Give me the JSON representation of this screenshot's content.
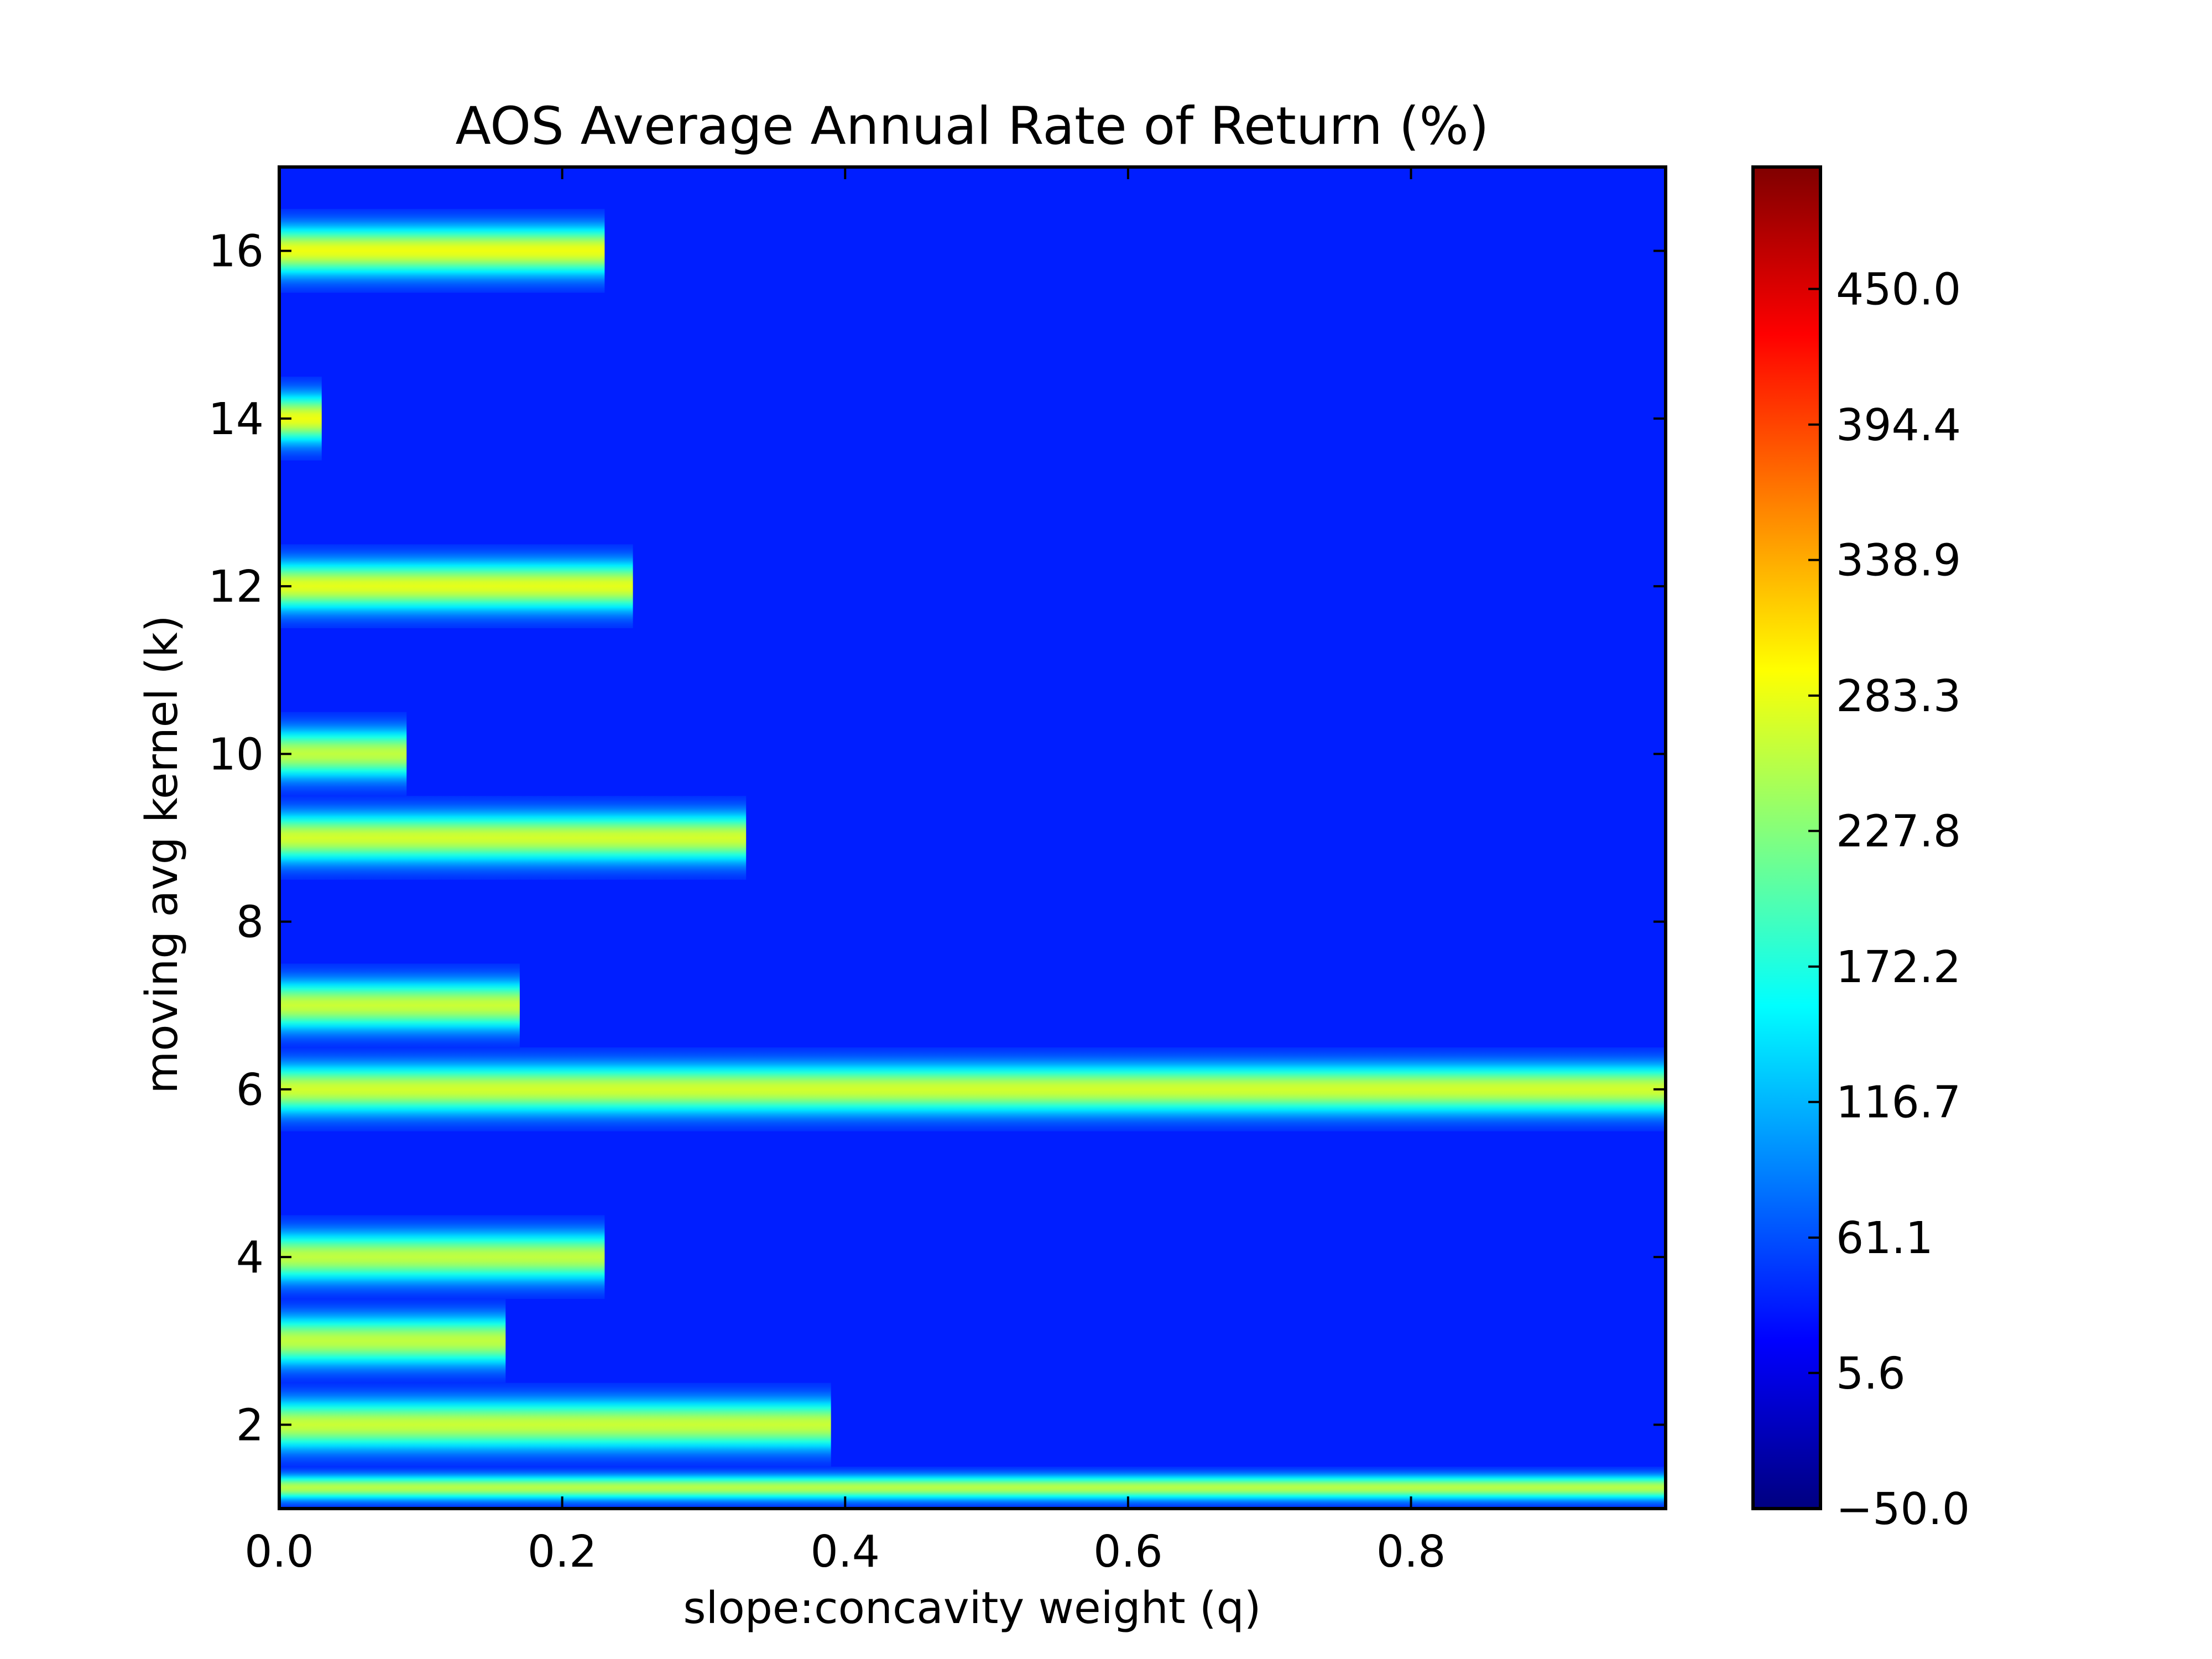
{
  "chart_data": {
    "type": "heatmap",
    "title": "AOS Average Annual Rate of Return (%)",
    "xlabel": "slope:concavity weight (q)",
    "ylabel": "moving avg kernel (k)",
    "xlim": [
      0.0,
      0.98
    ],
    "ylim": [
      1,
      17
    ],
    "x_ticks": [
      "0.0",
      "0.2",
      "0.4",
      "0.6",
      "0.8"
    ],
    "y_ticks": [
      "2",
      "4",
      "6",
      "8",
      "10",
      "12",
      "14",
      "16"
    ],
    "colorbar": {
      "colormap": "jet",
      "range": [
        -50.0,
        500.0
      ],
      "tick_labels": [
        "−50.0",
        "5.6",
        "61.1",
        "116.7",
        "172.2",
        "227.8",
        "283.3",
        "338.9",
        "394.4",
        "450.0"
      ]
    },
    "background_value": 35,
    "bands": [
      {
        "k": 16,
        "q_max": 0.23,
        "peak": 285
      },
      {
        "k": 14,
        "q_max": 0.03,
        "peak": 285
      },
      {
        "k": 12,
        "q_max": 0.25,
        "peak": 280
      },
      {
        "k": 10,
        "q_max": 0.09,
        "peak": 260
      },
      {
        "k": 9,
        "q_max": 0.33,
        "peak": 270
      },
      {
        "k": 7,
        "q_max": 0.17,
        "peak": 265
      },
      {
        "k": 6,
        "q_max": 0.98,
        "peak": 270
      },
      {
        "k": 4,
        "q_max": 0.23,
        "peak": 260
      },
      {
        "k": 3,
        "q_max": 0.16,
        "peak": 260
      },
      {
        "k": 2,
        "q_max": 0.39,
        "peak": 265
      },
      {
        "k": 1,
        "q_max": 0.98,
        "peak": 255
      }
    ]
  }
}
